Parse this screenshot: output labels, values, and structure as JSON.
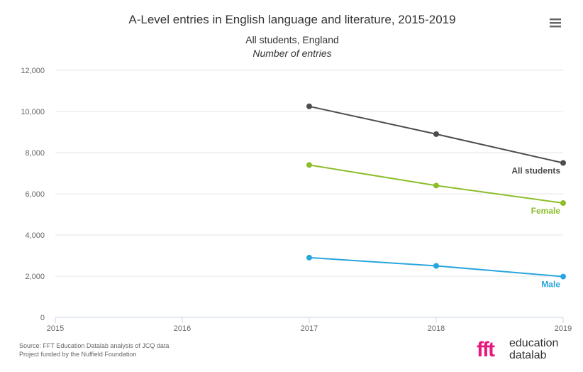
{
  "chart_data": {
    "type": "line",
    "title": "A-Level entries in English language and literature, 2015-2019",
    "subtitle": "All students, England",
    "y_caption": "Number of entries",
    "x": [
      2015,
      2016,
      2017,
      2018,
      2019
    ],
    "xlim": [
      2015,
      2019
    ],
    "ylim": [
      0,
      12000
    ],
    "y_ticks": [
      "0",
      "2,000",
      "4,000",
      "6,000",
      "8,000",
      "10,000",
      "12,000"
    ],
    "x_ticks": [
      "2015",
      "2016",
      "2017",
      "2018",
      "2019"
    ],
    "grid": true,
    "legend": "labels at line ends",
    "series": [
      {
        "name": "All students",
        "color": "#4d4d4d",
        "x": [
          2017,
          2018,
          2019
        ],
        "values": [
          10250,
          8900,
          7500
        ]
      },
      {
        "name": "Female",
        "color": "#8dbd2a",
        "x": [
          2017,
          2018,
          2019
        ],
        "values": [
          7400,
          6400,
          5550
        ]
      },
      {
        "name": "Male",
        "color": "#29a6dd",
        "x": [
          2017,
          2018,
          2019
        ],
        "values": [
          2900,
          2500,
          1980
        ]
      }
    ]
  },
  "credits": {
    "source": "Source: FFT Education Datalab analysis of JCQ data",
    "funding": "Project funded by the Nuffield Foundation"
  },
  "brand": {
    "logo_letters": "fft",
    "line1": "education",
    "line2": "datalab"
  },
  "menu": {
    "icon": "hamburger-menu-icon"
  }
}
